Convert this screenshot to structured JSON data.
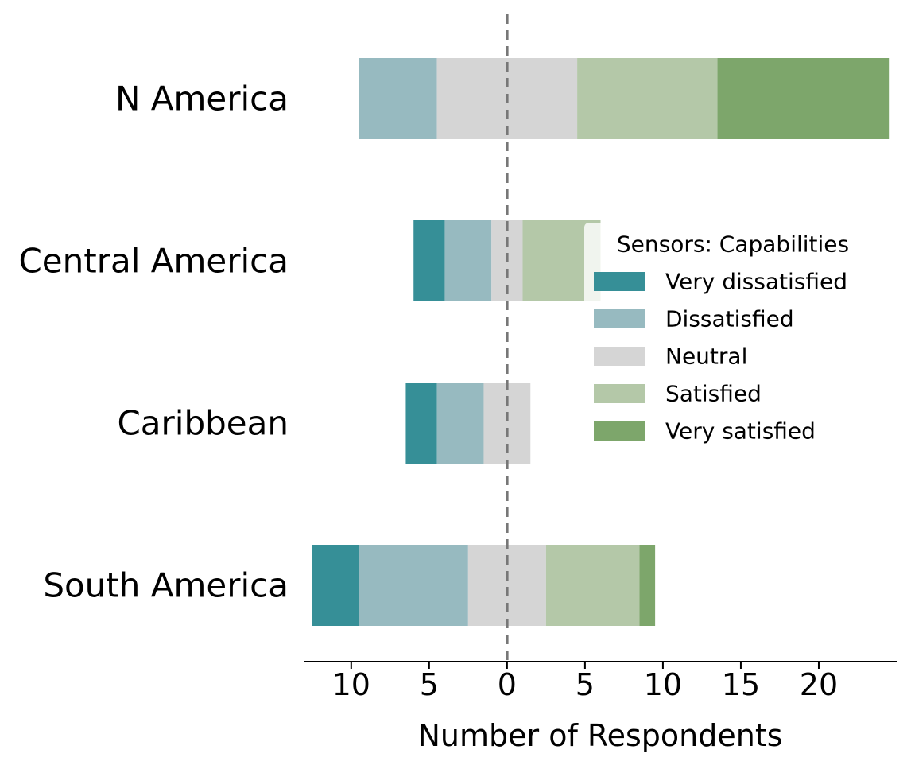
{
  "chart_data": {
    "type": "bar",
    "orientation": "horizontal",
    "style": "diverging-stacked",
    "categories": [
      "N America",
      "Central America",
      "Caribbean",
      "South America"
    ],
    "series": [
      {
        "name": "Very dissatisfied",
        "values": [
          0,
          2,
          2,
          3
        ],
        "color": "#368f97"
      },
      {
        "name": "Dissatisfied",
        "values": [
          5,
          3,
          3,
          7
        ],
        "color": "#97bac0"
      },
      {
        "name": "Neutral",
        "values": [
          9,
          2,
          3,
          5
        ],
        "color": "#d5d5d5"
      },
      {
        "name": "Satisfied",
        "values": [
          9,
          5,
          0,
          6
        ],
        "color": "#b4c8a8"
      },
      {
        "name": "Very satisfied",
        "values": [
          11,
          0,
          0,
          1
        ],
        "color": "#7da66b"
      }
    ],
    "xlabel": "Number of Respondents",
    "ylabel": "",
    "xlim": [
      -13,
      25
    ],
    "xticks": [
      -10,
      -5,
      0,
      5,
      10,
      15,
      20
    ],
    "xtick_labels": [
      "10",
      "5",
      "0",
      "5",
      "10",
      "15",
      "20"
    ],
    "center_line": 0,
    "legend": {
      "title": "Sensors: Capabilities",
      "position": "center-right",
      "entries": [
        "Very dissatisfied",
        "Dissatisfied",
        "Neutral",
        "Satisfied",
        "Very satisfied"
      ]
    },
    "grid": false
  }
}
